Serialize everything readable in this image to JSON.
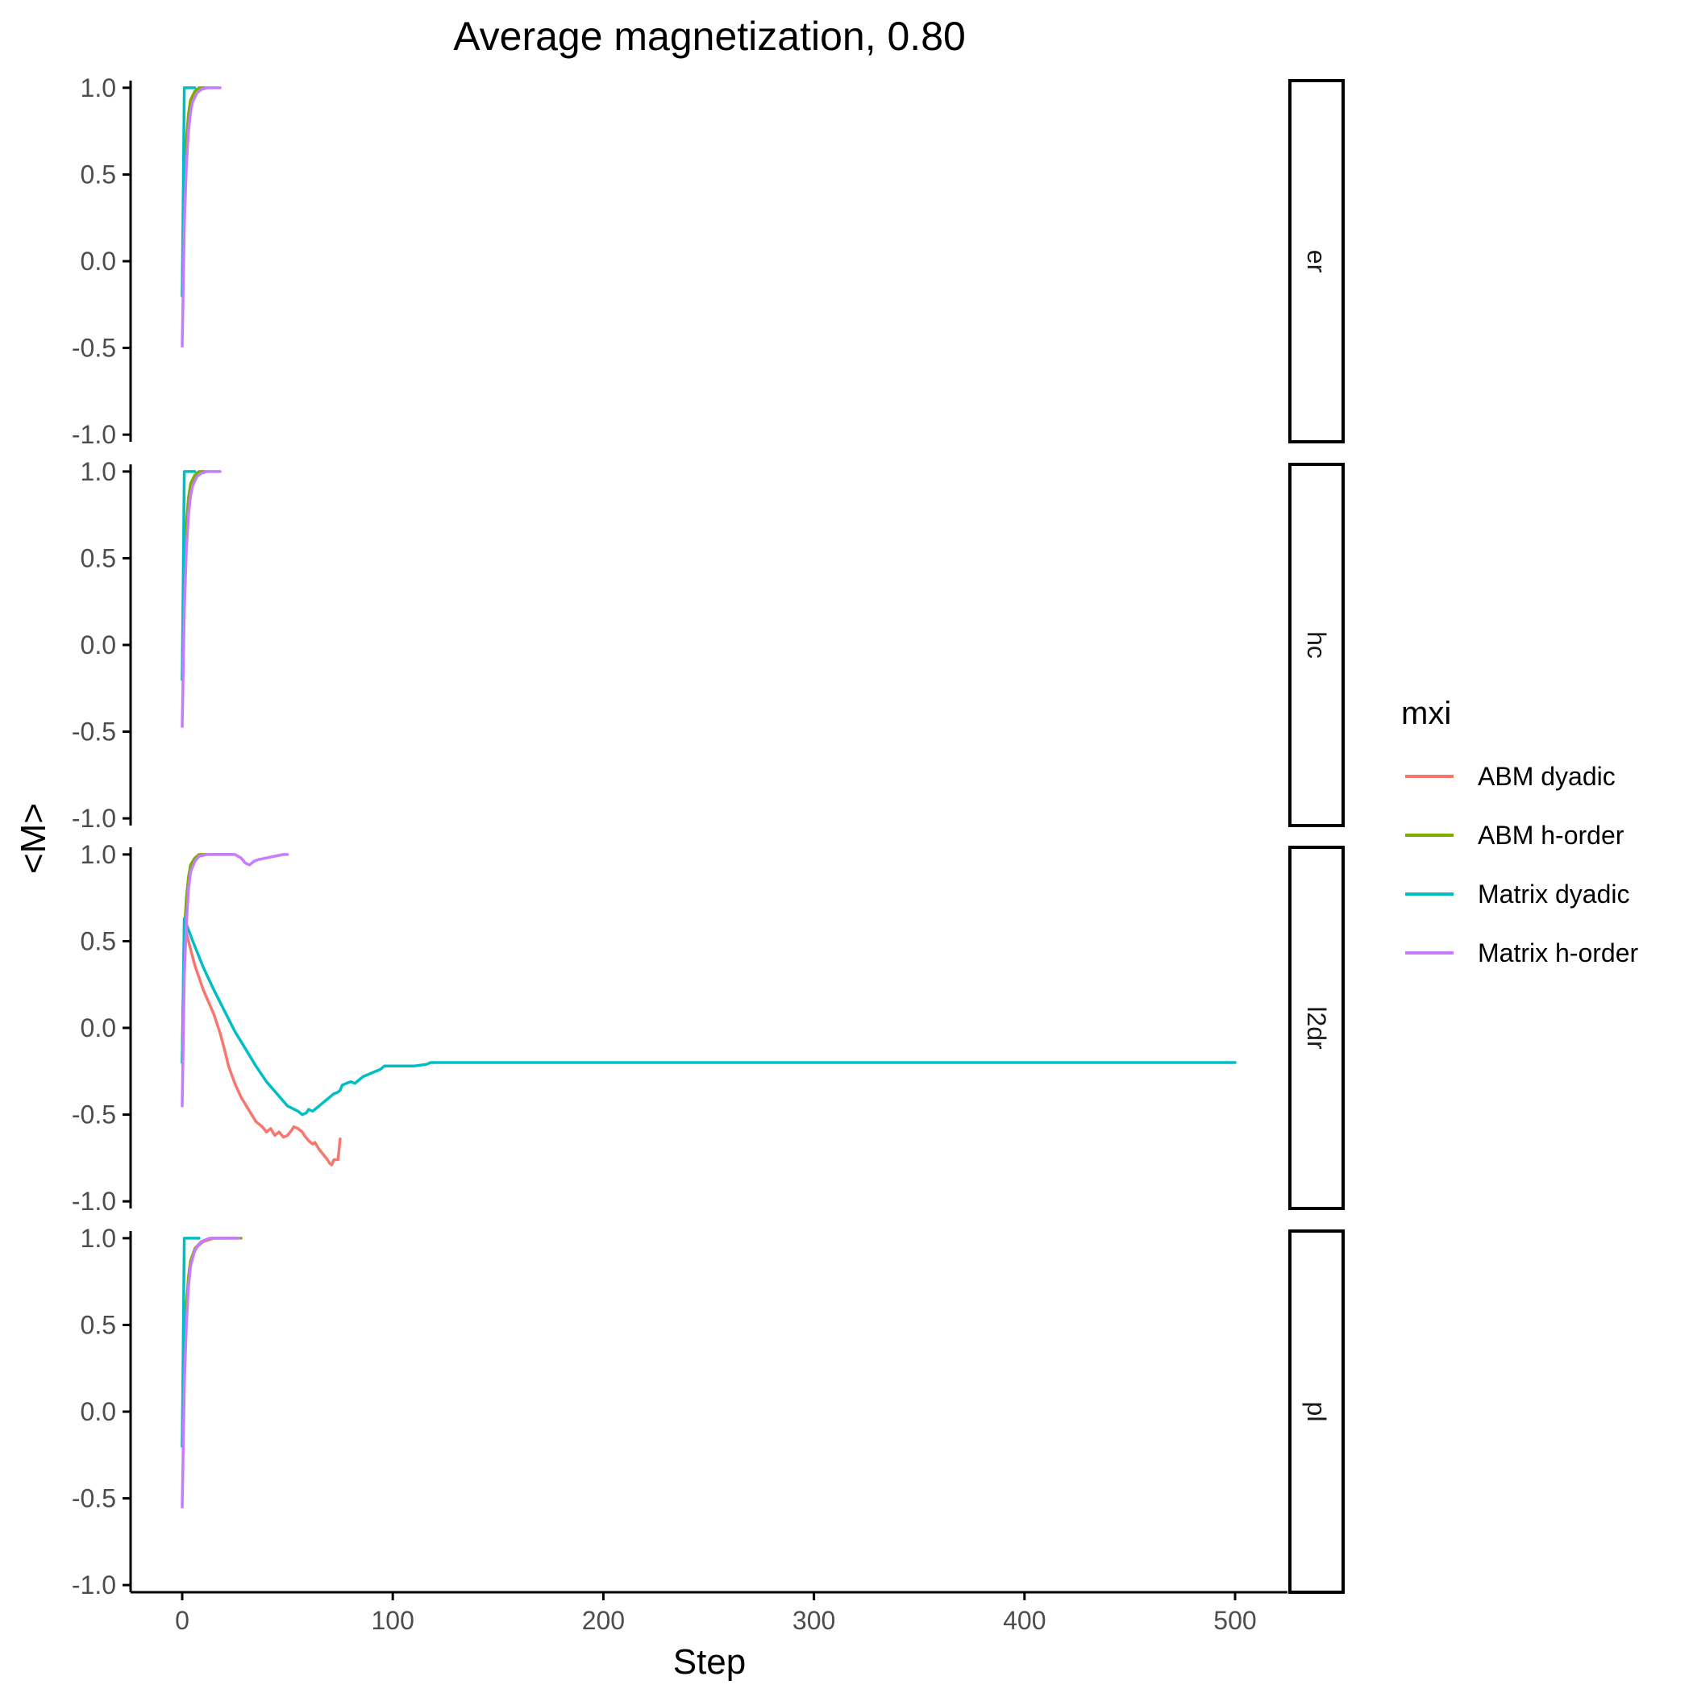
{
  "chart_data": {
    "type": "line",
    "title": "Average magnetization, 0.80",
    "xlabel": "Step",
    "ylabel": "<M>",
    "xlim": [
      0,
      500
    ],
    "ylim": [
      -1.0,
      1.0
    ],
    "x_ticks": [
      0,
      100,
      200,
      300,
      400,
      500
    ],
    "y_ticks": [
      1.0,
      0.5,
      0.0,
      -0.5,
      -1.0
    ],
    "y_tick_labels": [
      "1.0",
      "0.5",
      "0.0",
      "-0.5",
      "-1.0"
    ],
    "grid": false,
    "legend": {
      "title": "mxi",
      "placement": "right",
      "entries": [
        {
          "name": "ABM dyadic",
          "color": "#F8766D"
        },
        {
          "name": "ABM h-order",
          "color": "#7CAE00"
        },
        {
          "name": "Matrix dyadic",
          "color": "#00BFC4"
        },
        {
          "name": "Matrix h-order",
          "color": "#C77CFF"
        }
      ]
    },
    "panels": [
      {
        "label": "er",
        "series": [
          {
            "name": "ABM dyadic",
            "points": [
              [
                0,
                -0.2
              ],
              [
                1,
                0.3
              ],
              [
                2,
                0.6
              ],
              [
                3,
                0.8
              ],
              [
                4,
                0.9
              ],
              [
                5,
                0.95
              ],
              [
                7,
                0.98
              ],
              [
                10,
                1.0
              ],
              [
                12,
                1.0
              ]
            ]
          },
          {
            "name": "ABM h-order",
            "points": [
              [
                0,
                -0.2
              ],
              [
                1,
                0.4
              ],
              [
                2,
                0.7
              ],
              [
                3,
                0.85
              ],
              [
                4,
                0.93
              ],
              [
                6,
                0.98
              ],
              [
                8,
                1.0
              ],
              [
                10,
                1.0
              ]
            ]
          },
          {
            "name": "Matrix dyadic",
            "points": [
              [
                0,
                -0.2
              ],
              [
                1,
                1.0
              ],
              [
                6,
                1.0
              ]
            ]
          },
          {
            "name": "Matrix h-order",
            "points": [
              [
                0,
                -0.49
              ],
              [
                1,
                0.2
              ],
              [
                2,
                0.55
              ],
              [
                3,
                0.75
              ],
              [
                4,
                0.86
              ],
              [
                5,
                0.92
              ],
              [
                7,
                0.97
              ],
              [
                9,
                0.99
              ],
              [
                12,
                1.0
              ],
              [
                18,
                1.0
              ]
            ]
          }
        ]
      },
      {
        "label": "hc",
        "series": [
          {
            "name": "ABM dyadic",
            "points": [
              [
                0,
                -0.2
              ],
              [
                1,
                0.3
              ],
              [
                2,
                0.6
              ],
              [
                3,
                0.8
              ],
              [
                4,
                0.9
              ],
              [
                5,
                0.95
              ],
              [
                7,
                0.98
              ],
              [
                10,
                1.0
              ],
              [
                12,
                1.0
              ]
            ]
          },
          {
            "name": "ABM h-order",
            "points": [
              [
                0,
                -0.2
              ],
              [
                1,
                0.4
              ],
              [
                2,
                0.7
              ],
              [
                3,
                0.85
              ],
              [
                4,
                0.93
              ],
              [
                6,
                0.98
              ],
              [
                8,
                1.0
              ],
              [
                10,
                1.0
              ]
            ]
          },
          {
            "name": "Matrix dyadic",
            "points": [
              [
                0,
                -0.2
              ],
              [
                1,
                1.0
              ],
              [
                6,
                1.0
              ]
            ]
          },
          {
            "name": "Matrix h-order",
            "points": [
              [
                0,
                -0.47
              ],
              [
                1,
                0.2
              ],
              [
                2,
                0.55
              ],
              [
                3,
                0.75
              ],
              [
                4,
                0.86
              ],
              [
                5,
                0.92
              ],
              [
                7,
                0.97
              ],
              [
                9,
                0.99
              ],
              [
                12,
                1.0
              ],
              [
                18,
                1.0
              ]
            ]
          }
        ]
      },
      {
        "label": "l2dr",
        "series": [
          {
            "name": "ABM dyadic",
            "points": [
              [
                0,
                -0.2
              ],
              [
                1,
                0.6
              ],
              [
                3,
                0.5
              ],
              [
                6,
                0.36
              ],
              [
                10,
                0.22
              ],
              [
                15,
                0.08
              ],
              [
                18,
                -0.03
              ],
              [
                20,
                -0.12
              ],
              [
                22,
                -0.22
              ],
              [
                25,
                -0.32
              ],
              [
                28,
                -0.4
              ],
              [
                32,
                -0.48
              ],
              [
                35,
                -0.54
              ],
              [
                38,
                -0.57
              ],
              [
                40,
                -0.6
              ],
              [
                42,
                -0.58
              ],
              [
                44,
                -0.62
              ],
              [
                46,
                -0.6
              ],
              [
                48,
                -0.63
              ],
              [
                50,
                -0.62
              ],
              [
                52,
                -0.59
              ],
              [
                53,
                -0.57
              ],
              [
                55,
                -0.58
              ],
              [
                57,
                -0.6
              ],
              [
                58,
                -0.62
              ],
              [
                60,
                -0.65
              ],
              [
                62,
                -0.67
              ],
              [
                63,
                -0.66
              ],
              [
                65,
                -0.7
              ],
              [
                67,
                -0.73
              ],
              [
                69,
                -0.76
              ],
              [
                70,
                -0.78
              ],
              [
                71,
                -0.79
              ],
              [
                72,
                -0.76
              ],
              [
                74,
                -0.76
              ],
              [
                75,
                -0.64
              ]
            ]
          },
          {
            "name": "ABM h-order",
            "points": [
              [
                0,
                -0.2
              ],
              [
                1,
                0.55
              ],
              [
                2,
                0.75
              ],
              [
                3,
                0.87
              ],
              [
                4,
                0.94
              ],
              [
                6,
                0.98
              ],
              [
                8,
                1.0
              ],
              [
                20,
                1.0
              ],
              [
                24,
                1.0
              ]
            ]
          },
          {
            "name": "Matrix dyadic",
            "points": [
              [
                0,
                -0.2
              ],
              [
                1,
                0.63
              ],
              [
                5,
                0.5
              ],
              [
                10,
                0.35
              ],
              [
                15,
                0.22
              ],
              [
                20,
                0.1
              ],
              [
                25,
                -0.02
              ],
              [
                30,
                -0.12
              ],
              [
                35,
                -0.22
              ],
              [
                40,
                -0.31
              ],
              [
                45,
                -0.38
              ],
              [
                50,
                -0.45
              ],
              [
                55,
                -0.48
              ],
              [
                57,
                -0.5
              ],
              [
                59,
                -0.49
              ],
              [
                60,
                -0.47
              ],
              [
                62,
                -0.48
              ],
              [
                64,
                -0.46
              ],
              [
                66,
                -0.44
              ],
              [
                68,
                -0.42
              ],
              [
                70,
                -0.4
              ],
              [
                72,
                -0.38
              ],
              [
                74,
                -0.37
              ],
              [
                75,
                -0.36
              ],
              [
                76,
                -0.33
              ],
              [
                78,
                -0.32
              ],
              [
                80,
                -0.31
              ],
              [
                82,
                -0.32
              ],
              [
                84,
                -0.3
              ],
              [
                86,
                -0.28
              ],
              [
                88,
                -0.27
              ],
              [
                90,
                -0.26
              ],
              [
                92,
                -0.25
              ],
              [
                94,
                -0.24
              ],
              [
                96,
                -0.22
              ],
              [
                100,
                -0.22
              ],
              [
                110,
                -0.22
              ],
              [
                116,
                -0.21
              ],
              [
                118,
                -0.2
              ],
              [
                200,
                -0.2
              ],
              [
                300,
                -0.2
              ],
              [
                400,
                -0.2
              ],
              [
                500,
                -0.2
              ]
            ]
          },
          {
            "name": "Matrix h-order",
            "points": [
              [
                0,
                -0.45
              ],
              [
                1,
                0.3
              ],
              [
                2,
                0.6
              ],
              [
                3,
                0.8
              ],
              [
                4,
                0.9
              ],
              [
                6,
                0.96
              ],
              [
                8,
                0.99
              ],
              [
                12,
                1.0
              ],
              [
                25,
                1.0
              ],
              [
                28,
                0.98
              ],
              [
                30,
                0.95
              ],
              [
                32,
                0.94
              ],
              [
                34,
                0.96
              ],
              [
                36,
                0.97
              ],
              [
                40,
                0.98
              ],
              [
                44,
                0.99
              ],
              [
                48,
                1.0
              ],
              [
                50,
                1.0
              ]
            ]
          }
        ]
      },
      {
        "label": "pl",
        "series": [
          {
            "name": "ABM dyadic",
            "points": [
              [
                0,
                -0.2
              ],
              [
                1,
                0.3
              ],
              [
                2,
                0.58
              ],
              [
                3,
                0.75
              ],
              [
                4,
                0.85
              ],
              [
                5,
                0.9
              ],
              [
                7,
                0.95
              ],
              [
                10,
                0.98
              ],
              [
                15,
                1.0
              ],
              [
                20,
                1.0
              ]
            ]
          },
          {
            "name": "ABM h-order",
            "points": [
              [
                0,
                -0.2
              ],
              [
                1,
                0.35
              ],
              [
                2,
                0.62
              ],
              [
                3,
                0.78
              ],
              [
                4,
                0.87
              ],
              [
                6,
                0.94
              ],
              [
                9,
                0.98
              ],
              [
                13,
                1.0
              ],
              [
                28,
                1.0
              ]
            ]
          },
          {
            "name": "Matrix dyadic",
            "points": [
              [
                0,
                -0.2
              ],
              [
                1,
                1.0
              ],
              [
                8,
                1.0
              ]
            ]
          },
          {
            "name": "Matrix h-order",
            "points": [
              [
                0,
                -0.55
              ],
              [
                1,
                0.15
              ],
              [
                2,
                0.5
              ],
              [
                3,
                0.72
              ],
              [
                4,
                0.84
              ],
              [
                6,
                0.93
              ],
              [
                9,
                0.98
              ],
              [
                13,
                1.0
              ],
              [
                27,
                1.0
              ]
            ]
          }
        ]
      }
    ]
  }
}
